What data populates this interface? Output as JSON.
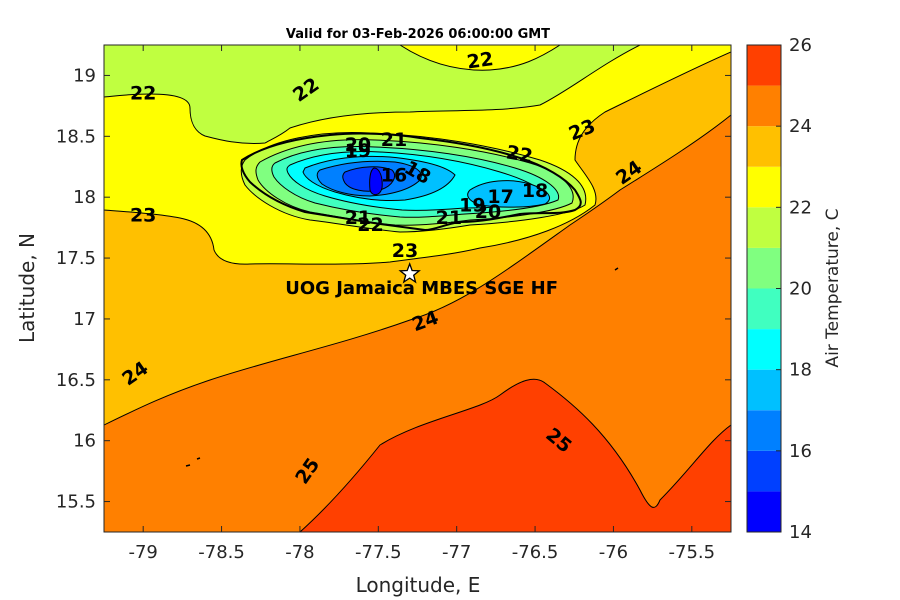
{
  "title": "Valid for 03-Feb-2026 06:00:00 GMT",
  "map": {
    "xlabel": "Longitude, E",
    "ylabel": "Latitude, N",
    "xlim": [
      -79.25,
      -75.25
    ],
    "ylim": [
      15.25,
      19.25
    ],
    "xticks": [
      "-79",
      "-78.5",
      "-78",
      "-77.5",
      "-77",
      "-76.5",
      "-76",
      "-75.5"
    ],
    "yticks": [
      "15.5",
      "16",
      "16.5",
      "17",
      "17.5",
      "18",
      "18.5",
      "19"
    ]
  },
  "colorbar": {
    "label": "Air Temperature, C",
    "ticks": [
      "14",
      "16",
      "18",
      "20",
      "22",
      "24",
      "26"
    ],
    "levels": [
      14,
      15,
      16,
      17,
      18,
      19,
      20,
      21,
      22,
      23,
      24,
      25,
      26
    ],
    "colors": [
      "#0000ff",
      "#0040ff",
      "#0080ff",
      "#00c0ff",
      "#00ffff",
      "#40ffc0",
      "#80ff80",
      "#c0ff40",
      "#ffff00",
      "#ffc000",
      "#ff8000",
      "#ff4000",
      "#ff0000"
    ]
  },
  "station": {
    "name": "UOG Jamaica MBES SGE HF",
    "lon": -77.3,
    "lat": 17.37
  },
  "contour_labels": [
    {
      "text": "22",
      "lon": -76.85,
      "lat": 19.12,
      "rot": -8
    },
    {
      "text": "22",
      "lon": -79.0,
      "lat": 18.85,
      "rot": 0
    },
    {
      "text": "22",
      "lon": -77.96,
      "lat": 18.88,
      "rot": -35
    },
    {
      "text": "23",
      "lon": -76.2,
      "lat": 18.55,
      "rot": -22
    },
    {
      "text": "22",
      "lon": -76.6,
      "lat": 18.35,
      "rot": 10
    },
    {
      "text": "20",
      "lon": -77.63,
      "lat": 18.43,
      "rot": 0
    },
    {
      "text": "19",
      "lon": -77.63,
      "lat": 18.38,
      "rot": 0
    },
    {
      "text": "21",
      "lon": -77.4,
      "lat": 18.47,
      "rot": 0
    },
    {
      "text": "16",
      "lon": -77.4,
      "lat": 18.18,
      "rot": 0
    },
    {
      "text": "18",
      "lon": -77.25,
      "lat": 18.2,
      "rot": 30
    },
    {
      "text": "18",
      "lon": -76.5,
      "lat": 18.05,
      "rot": 0
    },
    {
      "text": "17",
      "lon": -76.72,
      "lat": 18.0,
      "rot": 0
    },
    {
      "text": "19",
      "lon": -76.9,
      "lat": 17.93,
      "rot": 0
    },
    {
      "text": "20",
      "lon": -76.8,
      "lat": 17.88,
      "rot": 0
    },
    {
      "text": "21",
      "lon": -77.05,
      "lat": 17.83,
      "rot": 0
    },
    {
      "text": "21",
      "lon": -77.63,
      "lat": 17.83,
      "rot": 0
    },
    {
      "text": "22",
      "lon": -77.55,
      "lat": 17.77,
      "rot": 0
    },
    {
      "text": "23",
      "lon": -79.0,
      "lat": 17.85,
      "rot": 0
    },
    {
      "text": "23",
      "lon": -77.33,
      "lat": 17.56,
      "rot": 0
    },
    {
      "text": "24",
      "lon": -77.2,
      "lat": 16.98,
      "rot": -20
    },
    {
      "text": "24",
      "lon": -75.9,
      "lat": 18.2,
      "rot": -35
    },
    {
      "text": "24",
      "lon": -79.05,
      "lat": 16.55,
      "rot": -35
    },
    {
      "text": "25",
      "lon": -76.35,
      "lat": 16.0,
      "rot": 40
    },
    {
      "text": "25",
      "lon": -77.95,
      "lat": 15.75,
      "rot": -55
    }
  ]
}
